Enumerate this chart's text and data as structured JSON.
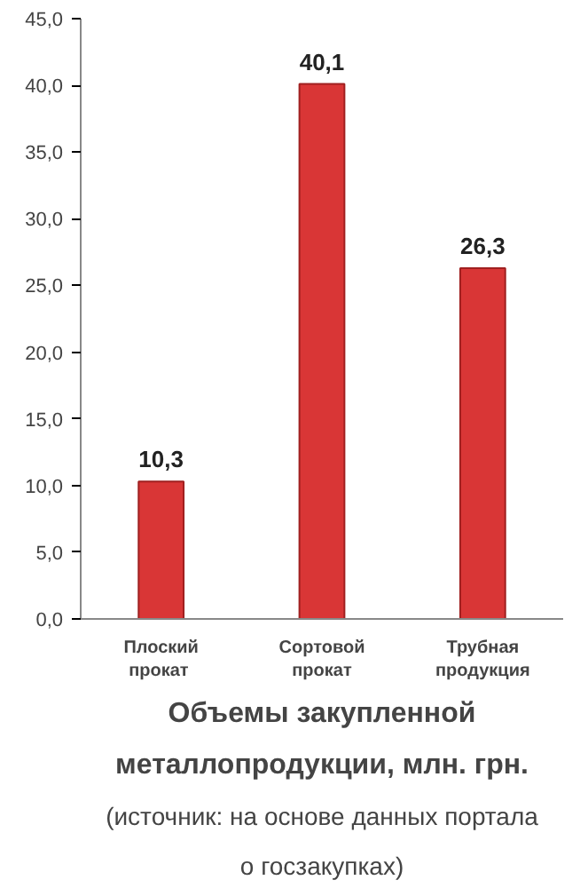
{
  "chart_data": {
    "type": "bar",
    "title": "Объемы закупленной металлопродукции, млн. грн.",
    "annotations": [
      "(источник: на основе данных портала о госзакупках)"
    ],
    "categories": [
      "Плоский  прокат",
      "Сортовой прокат",
      "Трубная продукция"
    ],
    "values": [
      10.3,
      40.1,
      26.3
    ],
    "color": "#d93636",
    "value_labels": [
      "10,3",
      "40,1",
      "26,3"
    ],
    "ylim": [
      0,
      45
    ],
    "yticks": [
      {
        "value": 0,
        "label": "0,0"
      },
      {
        "value": 5,
        "label": "5,0"
      },
      {
        "value": 10,
        "label": "10,0"
      },
      {
        "value": 15,
        "label": "15,0"
      },
      {
        "value": 20,
        "label": "20,0"
      },
      {
        "value": 25,
        "label": "25,0"
      },
      {
        "value": 30,
        "label": "30,0"
      },
      {
        "value": 35,
        "label": "35,0"
      },
      {
        "value": 40,
        "label": "40,0"
      },
      {
        "value": 45,
        "label": "45,0"
      }
    ]
  }
}
